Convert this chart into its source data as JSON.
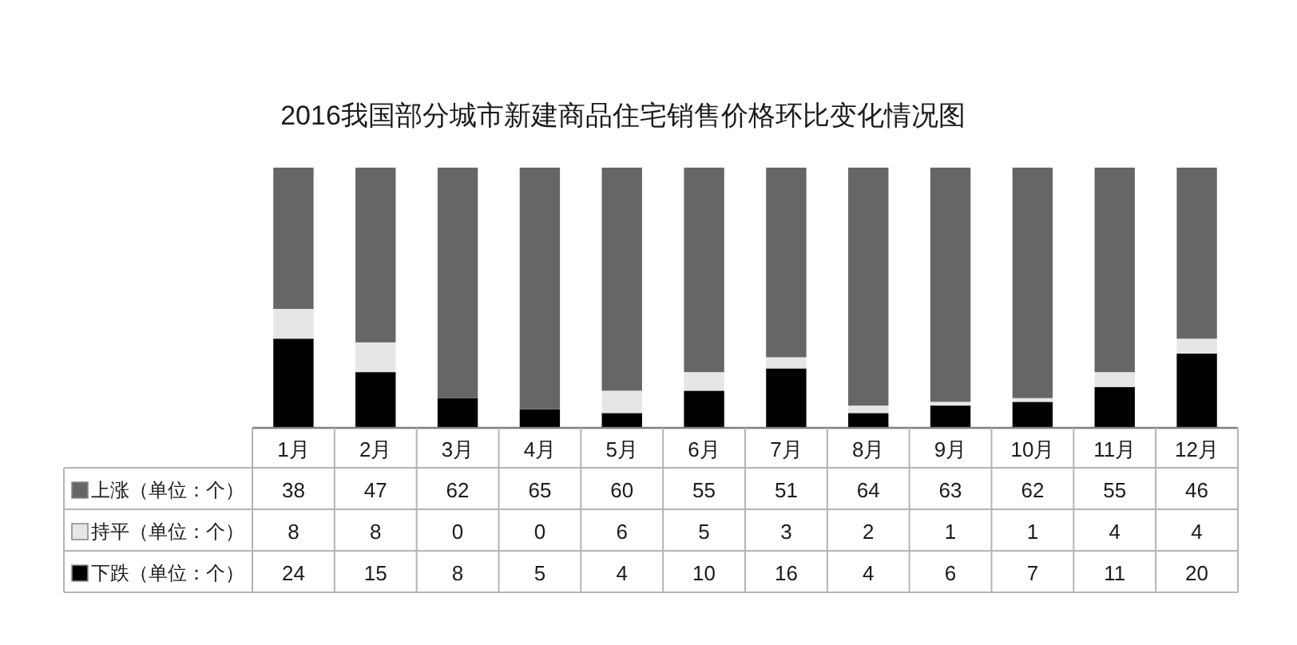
{
  "chart_data": {
    "type": "bar",
    "title": "2016我国部分城市新建商品住宅销售价格环比变化情况图",
    "categories": [
      "1月",
      "2月",
      "3月",
      "4月",
      "5月",
      "6月",
      "7月",
      "8月",
      "9月",
      "10月",
      "11月",
      "12月"
    ],
    "stacked": true,
    "data_labels": true,
    "legend": "bottom left",
    "series": [
      {
        "name": "下跌（单位：个）",
        "color": "#000000",
        "values": [
          24,
          15,
          8,
          5,
          4,
          10,
          16,
          4,
          6,
          7,
          11,
          20
        ]
      },
      {
        "name": "持平（单位：个）",
        "color": "#e6e6e6",
        "values": [
          8,
          8,
          0,
          0,
          6,
          5,
          3,
          2,
          1,
          1,
          4,
          4
        ]
      },
      {
        "name": "上涨（单位：个）",
        "color": "#666666",
        "values": [
          38,
          47,
          62,
          65,
          60,
          55,
          51,
          64,
          63,
          62,
          55,
          46
        ]
      }
    ]
  }
}
